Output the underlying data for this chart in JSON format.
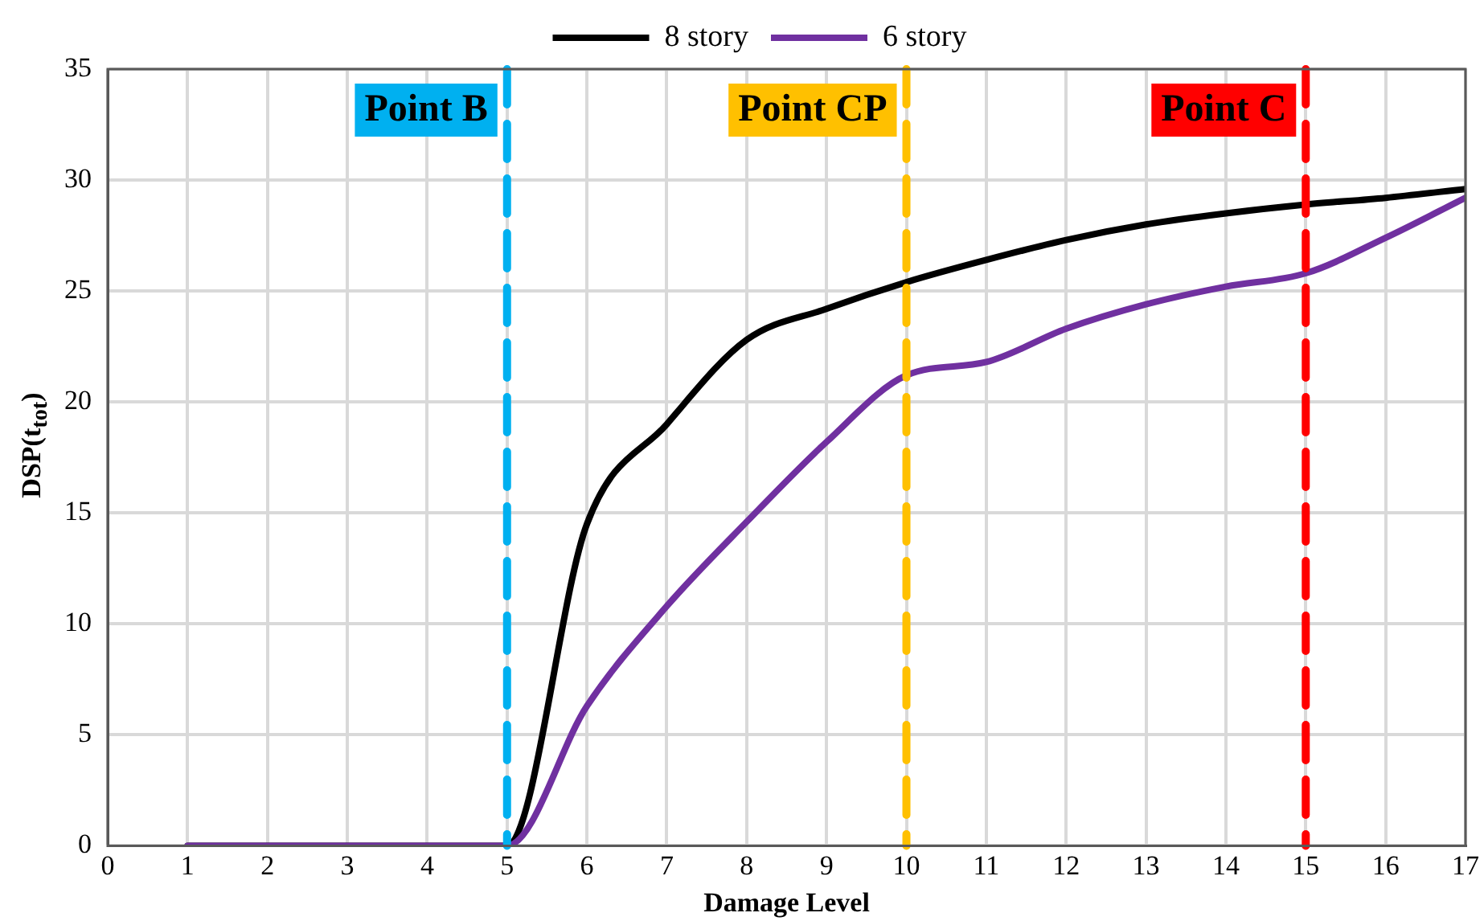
{
  "chart_data": {
    "type": "line",
    "xlabel": "Damage Level",
    "ylabel": "DSP(t$_{tot}$)",
    "xlim": [
      0,
      17
    ],
    "xticks": [
      0,
      1,
      2,
      3,
      4,
      5,
      6,
      7,
      8,
      9,
      10,
      11,
      12,
      13,
      14,
      15,
      16,
      17
    ],
    "ylim": [
      0,
      35
    ],
    "yticks": [
      0,
      5,
      10,
      15,
      20,
      25,
      30,
      35
    ],
    "x": [
      1,
      2,
      3,
      4,
      5,
      6,
      7,
      8,
      9,
      10,
      11,
      12,
      13,
      14,
      15,
      16,
      17
    ],
    "series": [
      {
        "name": "8 story",
        "color": "#000000",
        "values": [
          0,
          0,
          0,
          0,
          0,
          14.5,
          19,
          22.8,
          24.2,
          25.4,
          26.4,
          27.3,
          28,
          28.5,
          28.9,
          29.2,
          29.6
        ]
      },
      {
        "name": "6 story",
        "color": "#7030a0",
        "values": [
          0,
          0,
          0,
          0,
          0,
          6.3,
          10.8,
          14.6,
          18.2,
          21.2,
          21.8,
          23.3,
          24.4,
          25.2,
          25.8,
          27.4,
          29.2
        ]
      }
    ],
    "ref_lines": [
      {
        "axis": "x",
        "value": 5,
        "label": "Point B",
        "color": "#00b0f0",
        "line_style": "dashed"
      },
      {
        "axis": "x",
        "value": 10,
        "label": "Point CP",
        "color": "#ffc000",
        "line_style": "dashed"
      },
      {
        "axis": "x",
        "value": 15,
        "label": "Point C",
        "color": "#ff0000",
        "line_style": "dashed"
      }
    ],
    "grid": true,
    "legend": "top",
    "marker": "none",
    "line_style": "solid"
  }
}
